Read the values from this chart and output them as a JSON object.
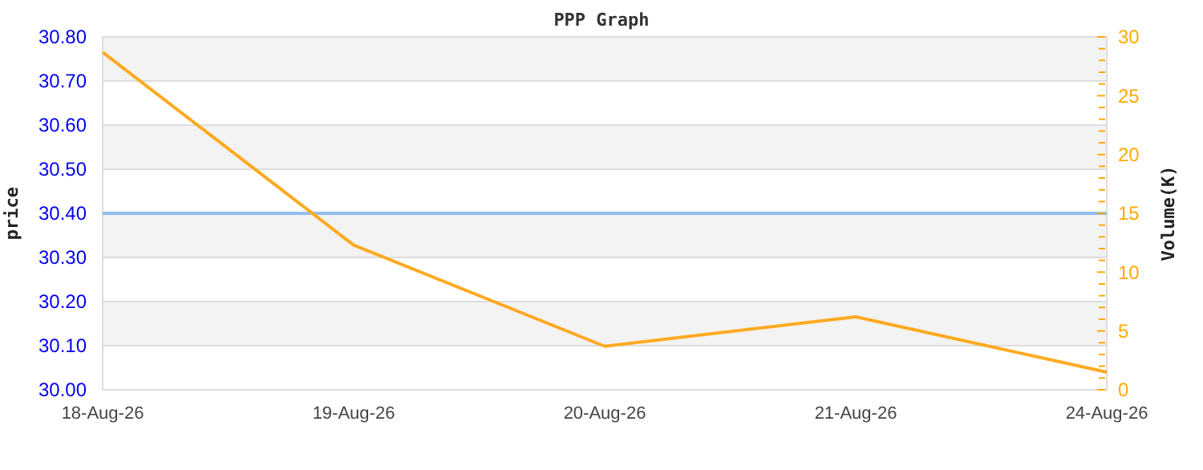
{
  "chart_data": {
    "type": "line",
    "title": "PPP Graph",
    "ylabel": "price",
    "y2label": "Volume(K)",
    "categories": [
      "18-Aug-26",
      "19-Aug-26",
      "20-Aug-26",
      "21-Aug-26",
      "24-Aug-26"
    ],
    "series": [
      {
        "color": "#8fbff0",
        "values": [
          30.4,
          30.4,
          30.4,
          30.4,
          30.4
        ]
      },
      {
        "color": "#ffaa22",
        "axis": "y2",
        "values": [
          28.7,
          12.3,
          3.7,
          6.2,
          1.5
        ]
      }
    ],
    "ylim": [
      30,
      30.8
    ],
    "yticks": [
      {
        "value": 30,
        "label": "30.00"
      },
      {
        "value": 30.1,
        "label": "30.10"
      },
      {
        "value": 30.2,
        "label": "30.20"
      },
      {
        "value": 30.3,
        "label": "30.30"
      },
      {
        "value": 30.4,
        "label": "30.40"
      },
      {
        "value": 30.5,
        "label": "30.50"
      },
      {
        "value": 30.6,
        "label": "30.60"
      },
      {
        "value": 30.7,
        "label": "30.70"
      },
      {
        "value": 30.8,
        "label": "30.80"
      }
    ],
    "y2lim": [
      0,
      30
    ],
    "y2ticks": [
      0,
      {
        "value": 1,
        "label": null
      },
      {
        "value": 2,
        "label": null
      },
      {
        "value": 3,
        "label": null
      },
      {
        "value": 4,
        "label": null
      },
      5,
      {
        "value": 6,
        "label": null
      },
      {
        "value": 7,
        "label": null
      },
      {
        "value": 8,
        "label": null
      },
      {
        "value": 9,
        "label": null
      },
      10,
      {
        "value": 11,
        "label": null
      },
      {
        "value": 12,
        "label": null
      },
      {
        "value": 13,
        "label": null
      },
      {
        "value": 14,
        "label": null
      },
      15,
      {
        "value": 16,
        "label": null
      },
      {
        "value": 17,
        "label": null
      },
      {
        "value": 18,
        "label": null
      },
      {
        "value": 19,
        "label": null
      },
      20,
      {
        "value": 21,
        "label": null
      },
      {
        "value": 22,
        "label": null
      },
      {
        "value": 23,
        "label": null
      },
      {
        "value": 24,
        "label": null
      },
      25,
      {
        "value": 26,
        "label": null
      },
      {
        "value": 27,
        "label": null
      },
      {
        "value": 28,
        "label": null
      },
      {
        "value": 29,
        "label": null
      },
      30
    ],
    "grid": "y"
  }
}
